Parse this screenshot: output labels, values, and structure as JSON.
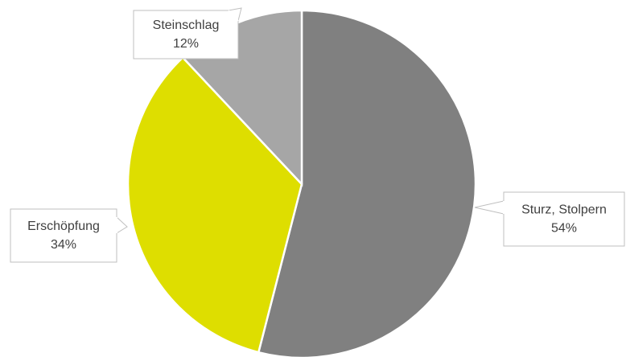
{
  "chart_data": {
    "type": "pie",
    "categories": [
      "Sturz, Stolpern",
      "Erschöpfung",
      "Steinschlag"
    ],
    "values": [
      54,
      34,
      12
    ],
    "value_labels": [
      "54%",
      "34%",
      "12%"
    ],
    "colors": [
      "#808080",
      "#dede00",
      "#a6a6a6"
    ]
  }
}
